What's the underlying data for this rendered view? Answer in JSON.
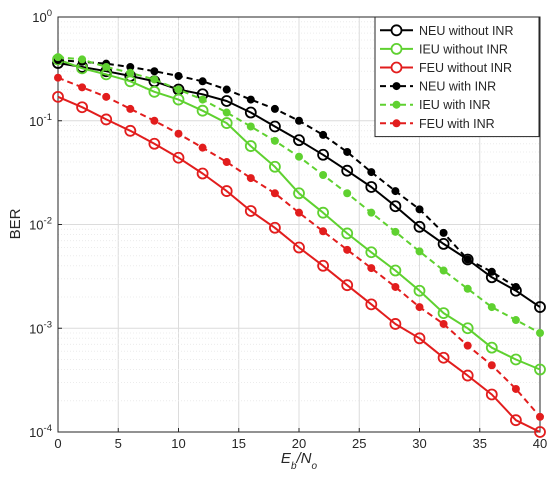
{
  "chart_data": {
    "type": "line",
    "xlabel": "E_b/N_o",
    "ylabel": "BER",
    "xlim": [
      0,
      40
    ],
    "ylim": [
      0.0001,
      1
    ],
    "yscale": "log",
    "grid": true,
    "minor_grid": true,
    "legend_position": "top-right",
    "x_ticks": [
      0,
      5,
      10,
      15,
      20,
      25,
      30,
      35,
      40
    ],
    "x_tick_labels": [
      "0",
      "5",
      "10",
      "15",
      "20",
      "25",
      "30",
      "35",
      "40"
    ],
    "y_ticks": [
      0.0001,
      0.001,
      0.01,
      0.1,
      1
    ],
    "y_tick_labels": [
      {
        "base": "10",
        "exp": "-4"
      },
      {
        "base": "10",
        "exp": "-3"
      },
      {
        "base": "10",
        "exp": "-2"
      },
      {
        "base": "10",
        "exp": "-1"
      },
      {
        "base": "10",
        "exp": "0"
      }
    ],
    "x": [
      0,
      2,
      4,
      6,
      8,
      10,
      12,
      14,
      16,
      18,
      20,
      22,
      24,
      26,
      28,
      30,
      32,
      34,
      36,
      38,
      40
    ],
    "series": [
      {
        "name": "NEU without INR",
        "color": "#000000",
        "line": "solid",
        "marker": "open-circle",
        "values": [
          0.36,
          0.33,
          0.3,
          0.27,
          0.24,
          0.2,
          0.18,
          0.155,
          0.12,
          0.088,
          0.065,
          0.047,
          0.033,
          0.023,
          0.015,
          0.0095,
          0.0065,
          0.0046,
          0.0031,
          0.0023,
          0.0016
        ]
      },
      {
        "name": "IEU without INR",
        "color": "#5fd130",
        "line": "solid",
        "marker": "open-circle",
        "values": [
          0.39,
          0.32,
          0.28,
          0.24,
          0.19,
          0.16,
          0.125,
          0.095,
          0.057,
          0.036,
          0.02,
          0.013,
          0.0082,
          0.0054,
          0.0036,
          0.0023,
          0.0014,
          0.001,
          0.00065,
          0.0005,
          0.0004
        ]
      },
      {
        "name": "FEU without INR",
        "color": "#e21d1d",
        "line": "solid",
        "marker": "open-circle",
        "values": [
          0.17,
          0.135,
          0.103,
          0.08,
          0.06,
          0.044,
          0.031,
          0.021,
          0.0135,
          0.0093,
          0.006,
          0.004,
          0.0026,
          0.0017,
          0.0011,
          0.0008,
          0.00052,
          0.00035,
          0.00023,
          0.00013,
          0.0001
        ]
      },
      {
        "name": "NEU with INR",
        "color": "#000000",
        "line": "dashed",
        "marker": "filled-dot",
        "values": [
          0.385,
          0.37,
          0.355,
          0.33,
          0.3,
          0.27,
          0.24,
          0.2,
          0.16,
          0.13,
          0.1,
          0.073,
          0.05,
          0.032,
          0.021,
          0.014,
          0.0083,
          0.0046,
          0.0035,
          0.0025,
          null
        ]
      },
      {
        "name": "IEU with INR",
        "color": "#5fd130",
        "line": "dashed",
        "marker": "filled-dot",
        "values": [
          0.41,
          0.39,
          0.33,
          0.29,
          0.25,
          0.2,
          0.16,
          0.12,
          0.088,
          0.064,
          0.045,
          0.03,
          0.02,
          0.013,
          0.0085,
          0.0055,
          0.0036,
          0.0024,
          0.0016,
          0.0012,
          0.0009
        ]
      },
      {
        "name": "FEU with INR",
        "color": "#e21d1d",
        "line": "dashed",
        "marker": "filled-dot",
        "values": [
          0.26,
          0.21,
          0.17,
          0.13,
          0.1,
          0.075,
          0.055,
          0.04,
          0.028,
          0.02,
          0.013,
          0.0086,
          0.0057,
          0.0038,
          0.0025,
          0.0016,
          0.0011,
          0.00068,
          0.00044,
          0.00026,
          0.00014
        ]
      }
    ]
  }
}
